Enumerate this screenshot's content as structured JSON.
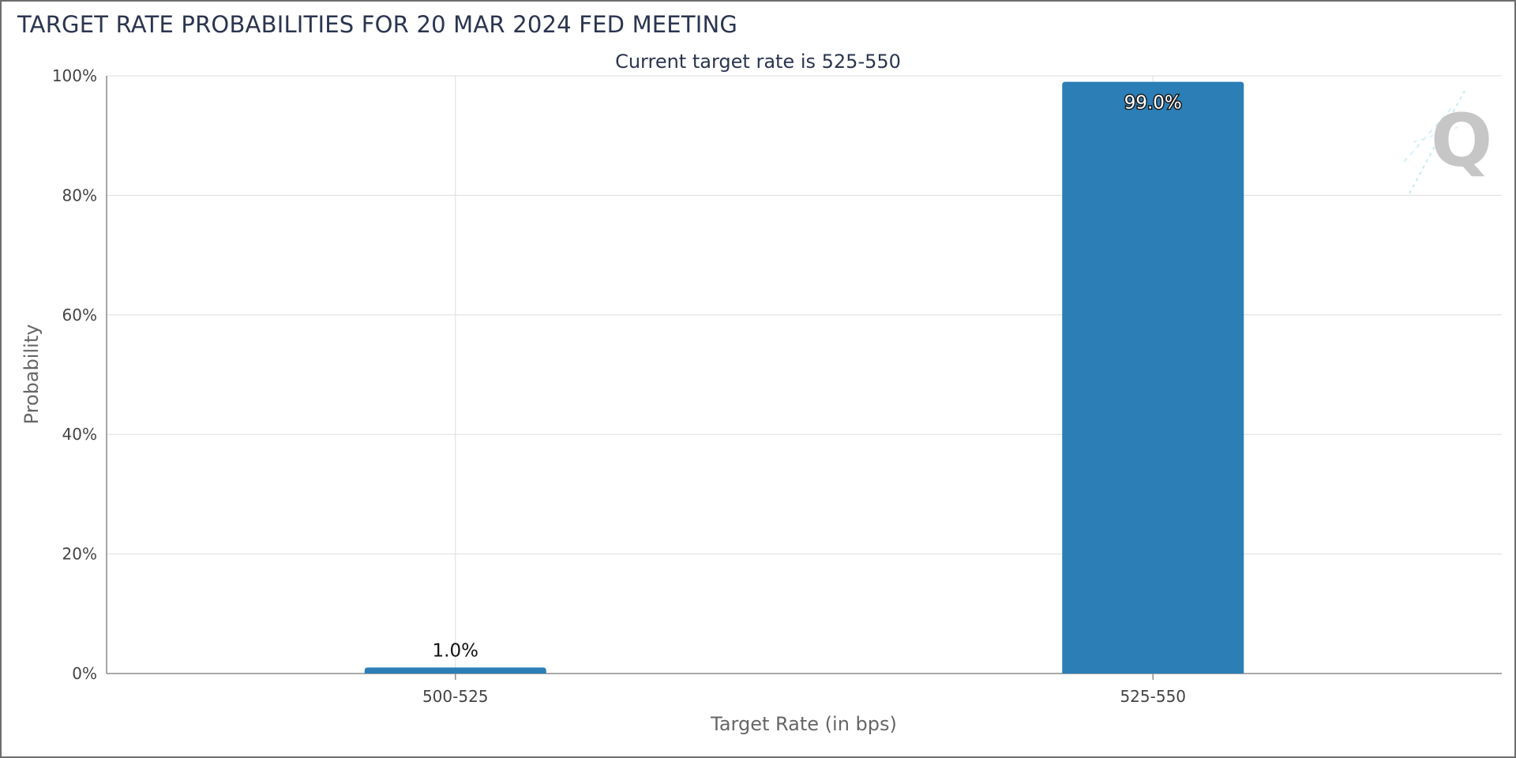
{
  "header": {
    "title": "TARGET RATE PROBABILITIES FOR 20 MAR 2024 FED MEETING"
  },
  "chart_data": {
    "type": "bar",
    "title": "TARGET RATE PROBABILITIES FOR 20 MAR 2024 FED MEETING",
    "subtitle": "Current target rate is 525-550",
    "categories": [
      "500-525",
      "525-550"
    ],
    "values": [
      1.0,
      99.0
    ],
    "data_labels": [
      "1.0%",
      "99.0%"
    ],
    "xlabel": "Target Rate (in bps)",
    "ylabel": "Probability",
    "ylim": [
      0,
      100
    ],
    "yticks": [
      "0%",
      "20%",
      "40%",
      "60%",
      "80%",
      "100%"
    ],
    "grid": true,
    "bar_color": "#2b7eb6",
    "watermark_icon": "q-logo-icon"
  }
}
